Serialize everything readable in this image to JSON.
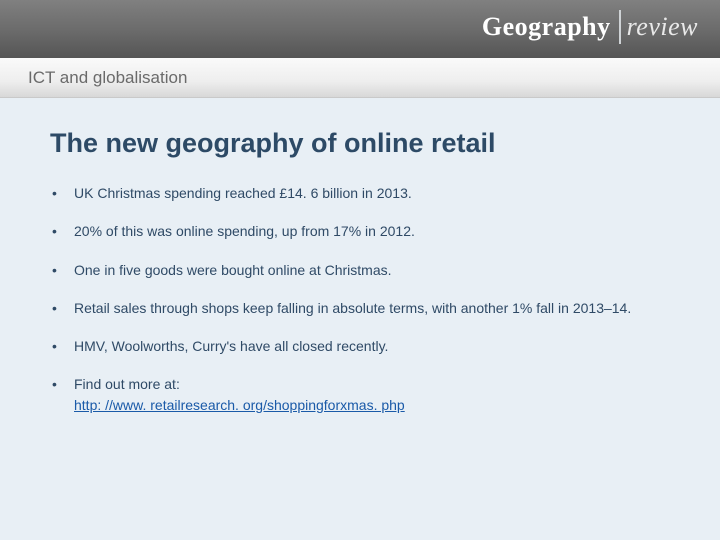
{
  "header": {
    "brand_geo": "Geography",
    "brand_review": "review"
  },
  "subheader": {
    "subtitle": "ICT and globalisation"
  },
  "slide": {
    "title": "The new geography of online retail",
    "bullets": [
      "UK Christmas spending reached £14. 6 billion in 2013.",
      "20% of this was online spending, up from 17% in 2012.",
      "One in five goods were bought online at Christmas.",
      "Retail sales through shops keep falling in absolute terms, with another 1% fall in 2013–14.",
      "HMV, Woolworths, Curry's have all closed recently."
    ],
    "link_intro": "Find out more at:",
    "link_text": "http: //www. retailresearch. org/shoppingforxmas. php",
    "link_href": "http://www.retailresearch.org/shoppingforxmas.php"
  }
}
